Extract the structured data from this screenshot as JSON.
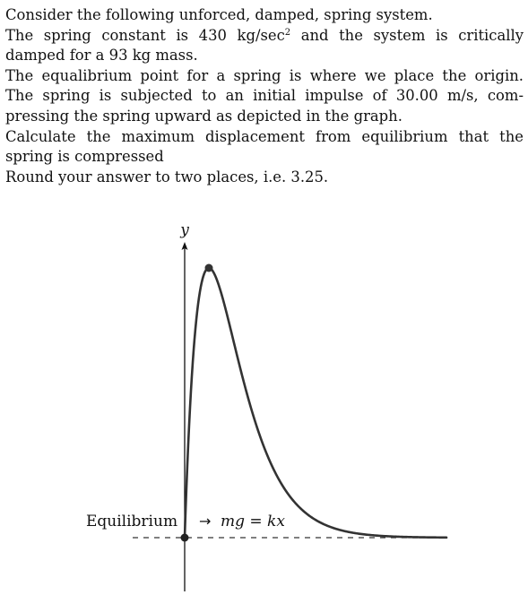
{
  "problem": {
    "line1": "Consider the following unforced, damped, spring system.",
    "line2_a": "The spring constant is 430 kg/sec",
    "line2_sup": "2",
    "line2_b": " and the system is critically",
    "line3": "damped for a 93 kg mass.",
    "line4": "The equalibrium point for a spring is where we place the origin.",
    "line5": "The spring is subjected to an initial impulse of 30.00 m/s, com-",
    "line6": "pressing the spring upward as depicted in the graph.",
    "line7": "Calculate the maximum displacement from equilibrium that the",
    "line8": "spring is compressed",
    "line9": "Round your answer to two places, i.e. 3.25."
  },
  "figure": {
    "y_axis_label": "y",
    "equilibrium_label": "Equilibrium",
    "arrow": "→",
    "equation": "mg = kx",
    "colors": {
      "curve": "#333333",
      "axis": "#111111",
      "dashed": "#333333"
    }
  }
}
